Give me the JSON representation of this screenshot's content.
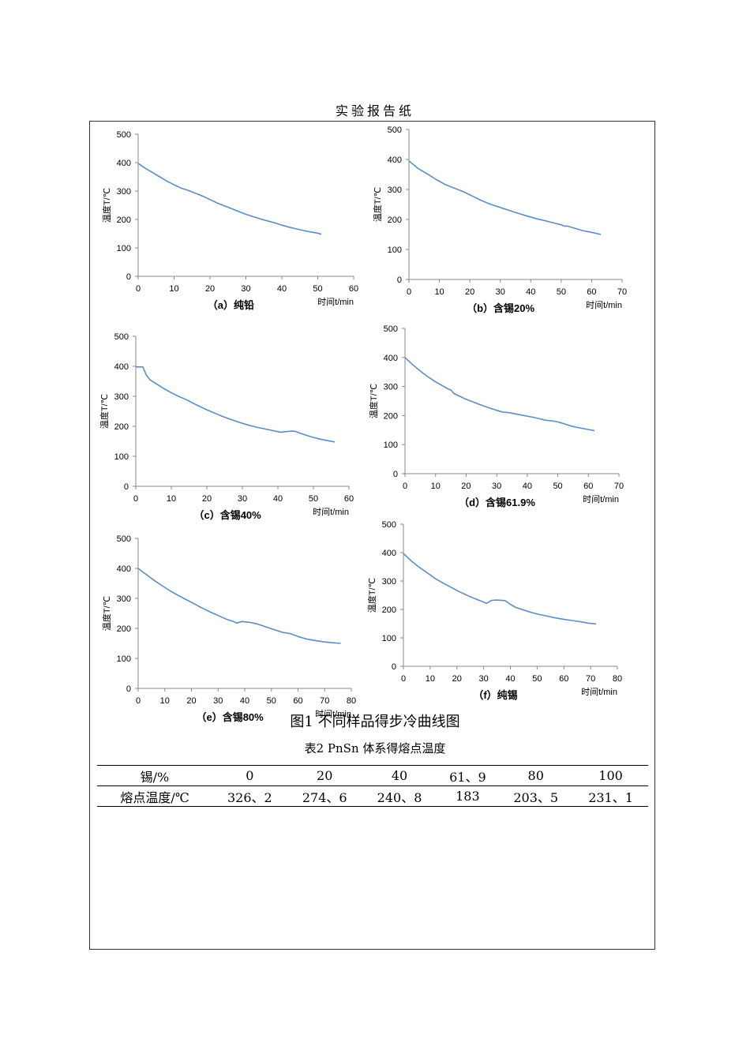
{
  "header": "实验报告纸",
  "figure_caption": "图1  不同样品得步冷曲线图",
  "table_caption": "表2  PnSn 体系得熔点温度",
  "table": {
    "rows": [
      [
        "锡/%",
        "0",
        "20",
        "40",
        "61、9",
        "80",
        "100"
      ],
      [
        "熔点温度/℃",
        "326、2",
        "274、6",
        "240、8",
        "183",
        "203、5",
        "231、1"
      ]
    ]
  },
  "colors": {
    "line": "#5B8DC5",
    "axis": "#888888"
  },
  "chart_data": [
    {
      "type": "line",
      "title": "（a）纯铅",
      "xlabel": "时间t/min",
      "ylabel": "温度T/℃",
      "xlim": [
        0,
        60
      ],
      "ylim": [
        0,
        500
      ],
      "xticks": [
        "0",
        "10",
        "20",
        "30",
        "40",
        "50",
        "60"
      ],
      "yticks": [
        "0",
        "100",
        "200",
        "300",
        "400",
        "500"
      ],
      "x": [
        0,
        2,
        4,
        6,
        8,
        10,
        12,
        14,
        16,
        18,
        20,
        22,
        24,
        26,
        28,
        30,
        32,
        34,
        36,
        38,
        40,
        42,
        44,
        46,
        48,
        50,
        51
      ],
      "y": [
        397,
        380,
        365,
        350,
        335,
        322,
        310,
        302,
        292,
        282,
        270,
        258,
        248,
        238,
        228,
        218,
        210,
        202,
        195,
        188,
        180,
        173,
        167,
        161,
        156,
        152,
        148
      ]
    },
    {
      "type": "line",
      "title": "（b）含锡20%",
      "xlabel": "时间t/min",
      "ylabel": "温度T/℃",
      "xlim": [
        0,
        70
      ],
      "ylim": [
        0,
        500
      ],
      "xticks": [
        "0",
        "10",
        "20",
        "30",
        "40",
        "50",
        "60",
        "70"
      ],
      "yticks": [
        "0",
        "100",
        "200",
        "300",
        "400",
        "500"
      ],
      "x": [
        0,
        3,
        6,
        9,
        12,
        15,
        18,
        21,
        24,
        27,
        30,
        33,
        36,
        39,
        42,
        45,
        48,
        50,
        51,
        52,
        54,
        57,
        60,
        63
      ],
      "y": [
        395,
        370,
        352,
        333,
        316,
        304,
        292,
        277,
        262,
        250,
        240,
        230,
        220,
        211,
        202,
        195,
        187,
        182,
        178,
        178,
        172,
        163,
        157,
        150
      ]
    },
    {
      "type": "line",
      "title": "（c）含锡40%",
      "xlabel": "时间t/min",
      "ylabel": "温度T/℃",
      "xlim": [
        0,
        60
      ],
      "ylim": [
        0,
        500
      ],
      "xticks": [
        "0",
        "10",
        "20",
        "30",
        "40",
        "50",
        "60"
      ],
      "yticks": [
        "0",
        "100",
        "200",
        "300",
        "400",
        "500"
      ],
      "x": [
        0,
        1,
        2,
        3,
        4,
        6,
        8,
        10,
        12,
        14,
        16,
        18,
        20,
        22,
        24,
        26,
        28,
        30,
        32,
        34,
        36,
        38,
        40,
        41,
        42,
        44,
        45,
        46,
        48,
        50,
        52,
        54,
        56
      ],
      "y": [
        398,
        398,
        398,
        370,
        355,
        340,
        325,
        312,
        300,
        290,
        278,
        266,
        255,
        245,
        235,
        226,
        218,
        210,
        203,
        197,
        192,
        187,
        182,
        180,
        182,
        184,
        183,
        178,
        170,
        163,
        157,
        152,
        148
      ]
    },
    {
      "type": "line",
      "title": "（d）含锡61.9%",
      "xlabel": "时间t/min",
      "ylabel": "温度T/℃",
      "xlim": [
        0,
        70
      ],
      "ylim": [
        0,
        500
      ],
      "xticks": [
        "0",
        "10",
        "20",
        "30",
        "40",
        "50",
        "60",
        "70"
      ],
      "yticks": [
        "0",
        "100",
        "200",
        "300",
        "400",
        "500"
      ],
      "x": [
        0,
        2,
        4,
        6,
        8,
        10,
        12,
        14,
        15,
        16,
        18,
        20,
        22,
        24,
        26,
        28,
        30,
        32,
        34,
        36,
        38,
        40,
        42,
        44,
        46,
        48,
        50,
        52,
        54,
        56,
        58,
        60,
        62
      ],
      "y": [
        400,
        380,
        362,
        345,
        330,
        316,
        304,
        292,
        288,
        276,
        266,
        256,
        248,
        240,
        232,
        225,
        218,
        212,
        210,
        206,
        202,
        198,
        194,
        189,
        184,
        182,
        178,
        172,
        165,
        160,
        156,
        152,
        148
      ]
    },
    {
      "type": "line",
      "title": "（e）含锡80%",
      "xlabel": "时间t/min",
      "ylabel": "温度T/℃",
      "xlim": [
        0,
        80
      ],
      "ylim": [
        0,
        500
      ],
      "xticks": [
        "0",
        "10",
        "20",
        "30",
        "40",
        "50",
        "60",
        "70",
        "80"
      ],
      "yticks": [
        "0",
        "100",
        "200",
        "300",
        "400",
        "500"
      ],
      "x": [
        0,
        3,
        6,
        9,
        12,
        15,
        18,
        21,
        24,
        27,
        30,
        33,
        36,
        37,
        39,
        42,
        45,
        48,
        51,
        54,
        57,
        60,
        63,
        66,
        69,
        72,
        76
      ],
      "y": [
        400,
        380,
        360,
        342,
        325,
        310,
        296,
        282,
        268,
        255,
        243,
        231,
        222,
        218,
        223,
        220,
        214,
        205,
        196,
        187,
        183,
        173,
        165,
        160,
        156,
        153,
        150
      ]
    },
    {
      "type": "line",
      "title": "（f）纯锡",
      "xlabel": "时间t/min",
      "ylabel": "温度T/℃",
      "xlim": [
        0,
        80
      ],
      "ylim": [
        0,
        500
      ],
      "xticks": [
        "0",
        "10",
        "20",
        "30",
        "40",
        "50",
        "60",
        "70",
        "80"
      ],
      "yticks": [
        "0",
        "100",
        "200",
        "300",
        "400",
        "500"
      ],
      "x": [
        0,
        3,
        6,
        9,
        12,
        15,
        18,
        21,
        24,
        27,
        30,
        31,
        33,
        35,
        38,
        40,
        42,
        45,
        48,
        51,
        54,
        57,
        60,
        63,
        66,
        69,
        72
      ],
      "y": [
        397,
        370,
        348,
        328,
        308,
        292,
        277,
        262,
        249,
        237,
        226,
        221,
        232,
        233,
        231,
        218,
        207,
        198,
        189,
        182,
        176,
        170,
        165,
        161,
        157,
        152,
        149
      ]
    }
  ]
}
